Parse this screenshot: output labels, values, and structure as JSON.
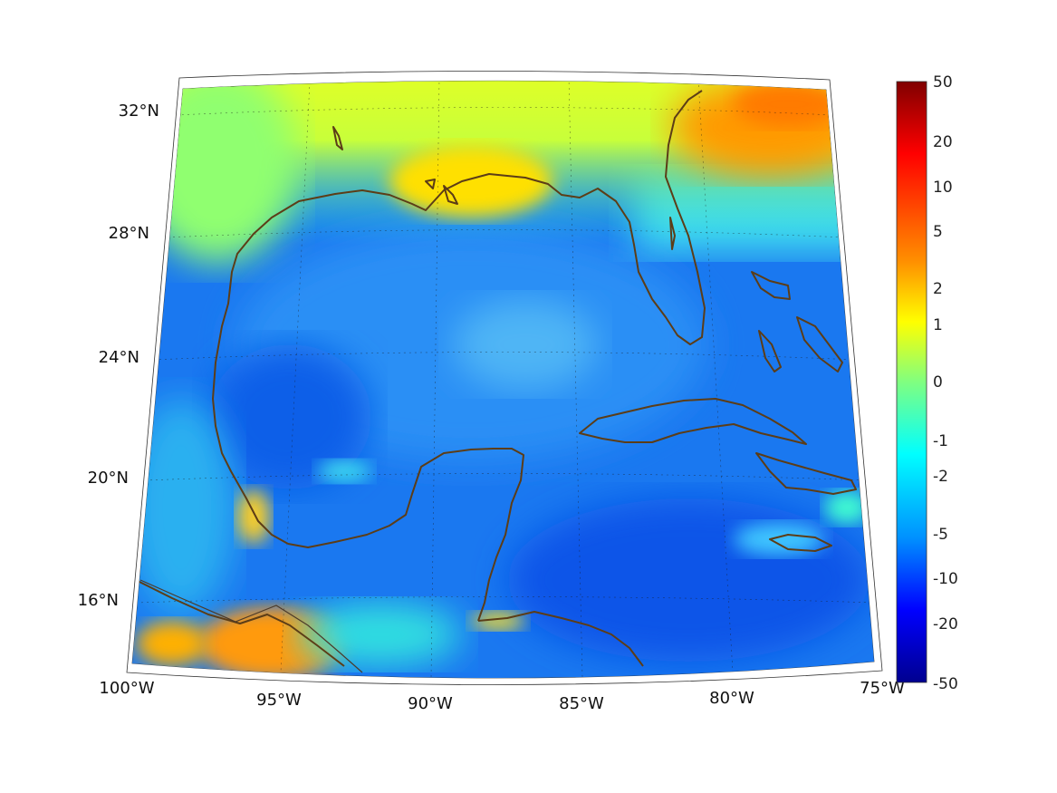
{
  "map": {
    "projection": "lambert-conformal",
    "lon_range": [
      -100,
      -75
    ],
    "lat_range": [
      14,
      32
    ],
    "lon_ticks": [
      "100°W",
      "95°W",
      "90°W",
      "85°W",
      "80°W",
      "75°W"
    ],
    "lat_ticks": [
      "32°N",
      "28°N",
      "24°N",
      "20°N",
      "16°N"
    ],
    "coastline_color": "#5c3d17",
    "gridlines": "dotted"
  },
  "colorbar": {
    "colormap": "jet",
    "labels": [
      "50",
      "20",
      "10",
      "5",
      "2",
      "1",
      "0",
      "-1",
      "-2",
      "-5",
      "-10",
      "-20",
      "-50"
    ],
    "colors": [
      "#800000",
      "#ff0000",
      "#ff8000",
      "#ffff00",
      "#80ff80",
      "#00ffff",
      "#0080ff",
      "#0000ff",
      "#00008f"
    ]
  }
}
